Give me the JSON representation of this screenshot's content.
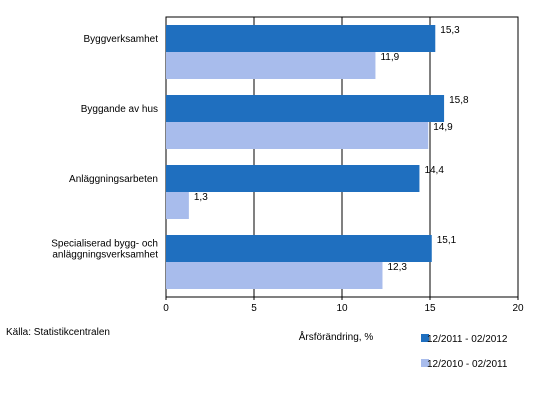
{
  "chart_data": {
    "type": "bar",
    "orientation": "horizontal",
    "categories": [
      [
        "Byggverksamhet"
      ],
      [
        "Byggande av hus"
      ],
      [
        "Anläggningsarbeten"
      ],
      [
        "Specialiserad bygg- och",
        "anläggningsverksamhet"
      ]
    ],
    "series": [
      {
        "name": "12/2011 - 02/2012",
        "values": [
          15.3,
          15.8,
          14.4,
          15.1
        ],
        "labels": [
          "15,3",
          "15,8",
          "14,4",
          "15,1"
        ],
        "color": "#1F6FBF"
      },
      {
        "name": "12/2010 - 02/2011",
        "values": [
          11.9,
          14.9,
          1.3,
          12.3
        ],
        "labels": [
          "11,9",
          "14,9",
          "1,3",
          "12,3"
        ],
        "color": "#A8BCEC"
      }
    ],
    "xlim": [
      0,
      20
    ],
    "xticks": [
      0,
      5,
      10,
      15,
      20
    ],
    "xlabel": "Årsförändring, %",
    "grid": "vertical",
    "legend_position": "bottom-right"
  },
  "source": "Källa: Statistikcentralen"
}
